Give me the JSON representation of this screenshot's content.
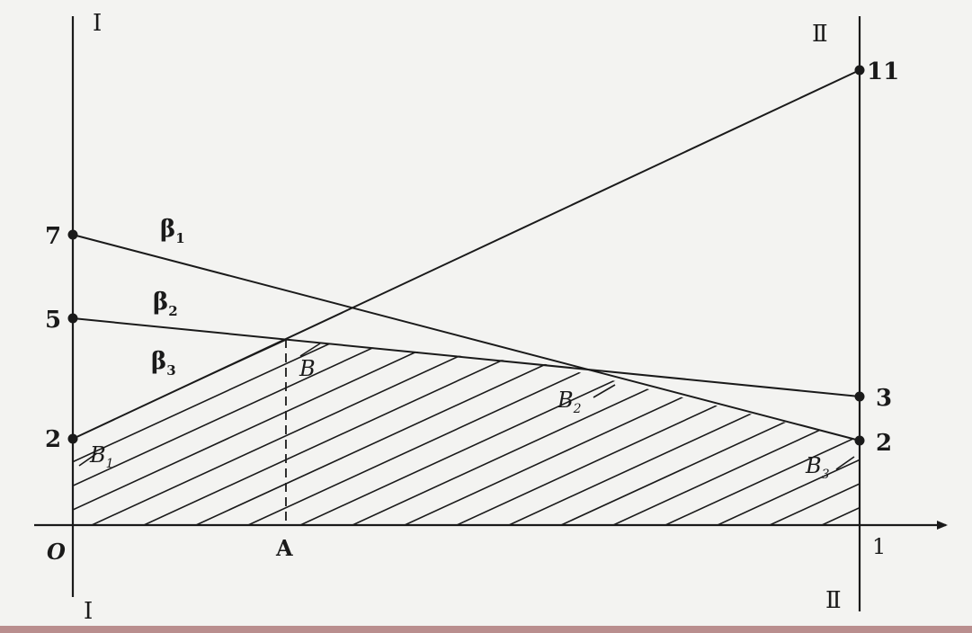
{
  "diagram": {
    "axis_labels": {
      "left_top": "I",
      "left_bottom": "I",
      "right_top": "Ⅱ",
      "right_bottom": "Ⅱ",
      "origin": "O",
      "x_one": "1",
      "a_point": "A"
    },
    "left_ticks": [
      "7",
      "5",
      "2"
    ],
    "right_ticks": [
      "11",
      "3",
      "2"
    ],
    "line_labels": {
      "beta1_main": "β",
      "beta1_sub": "1",
      "beta2_main": "β",
      "beta2_sub": "2",
      "beta3_main": "β",
      "beta3_sub": "3"
    },
    "point_labels": {
      "B": "B",
      "B1_main": "B",
      "B1_sub": "1",
      "B2_main": "B",
      "B2_sub": "2",
      "B3_main": "B",
      "B3_sub": "3"
    },
    "strategies": [
      {
        "name": "β1",
        "left_value": 7,
        "right_value": 2
      },
      {
        "name": "β2",
        "left_value": 5,
        "right_value": 3
      },
      {
        "name": "β3",
        "left_value": 2,
        "right_value": 11
      }
    ],
    "colors": {
      "ink": "#1a1a1a",
      "background": "#f3f3f1",
      "bottom_band": "#b98e8e"
    }
  }
}
